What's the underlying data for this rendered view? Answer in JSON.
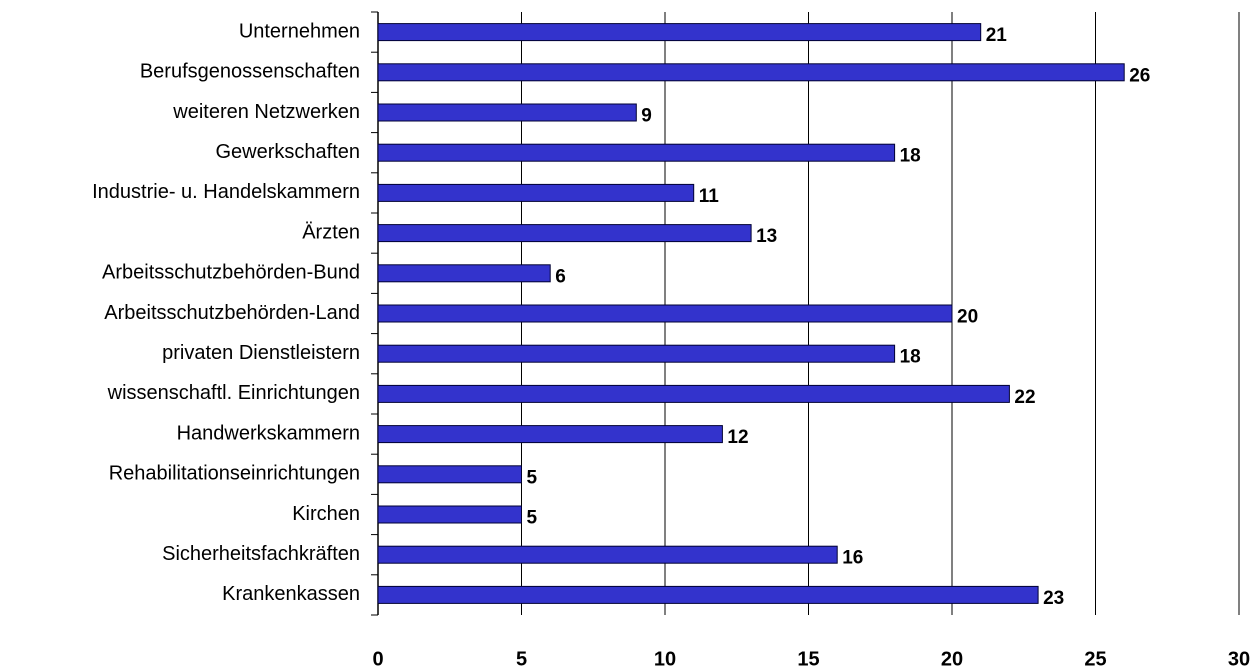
{
  "chart_data": {
    "type": "bar",
    "orientation": "horizontal",
    "categories": [
      "Unternehmen",
      "Berufsgenossenschaften",
      "weiteren Netzwerken",
      "Gewerkschaften",
      "Industrie- u. Handelskammern",
      "Ärzten",
      "Arbeitsschutzbehörden-Bund",
      "Arbeitsschutzbehörden-Land",
      "privaten Dienstleistern",
      "wissenschaftl. Einrichtungen",
      "Handwerkskammern",
      "Rehabilitationseinrichtungen",
      "Kirchen",
      "Sicherheitsfachkräften",
      "Krankenkassen"
    ],
    "values": [
      21,
      26,
      9,
      18,
      11,
      13,
      6,
      20,
      18,
      22,
      12,
      5,
      5,
      16,
      23
    ],
    "color": "#3333cc",
    "xlim": [
      0,
      30
    ],
    "xticks": [
      0,
      5,
      10,
      15,
      20,
      25,
      30
    ],
    "grid": true
  }
}
